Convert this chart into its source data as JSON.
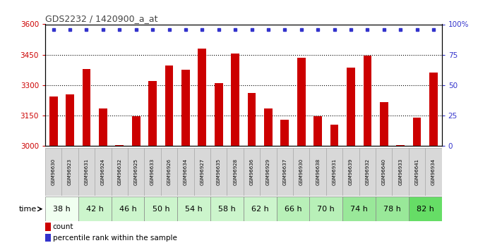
{
  "title": "GDS2232 / 1420900_a_at",
  "samples": [
    "GSM96630",
    "GSM96923",
    "GSM96631",
    "GSM96924",
    "GSM96632",
    "GSM96925",
    "GSM96633",
    "GSM96926",
    "GSM96634",
    "GSM96927",
    "GSM96635",
    "GSM96928",
    "GSM96636",
    "GSM96929",
    "GSM96637",
    "GSM96930",
    "GSM96638",
    "GSM96931",
    "GSM96639",
    "GSM96932",
    "GSM96640",
    "GSM96933",
    "GSM96641",
    "GSM96934"
  ],
  "bar_values": [
    3245,
    3255,
    3380,
    3185,
    3005,
    3145,
    3320,
    3395,
    3375,
    3480,
    3310,
    3455,
    3260,
    3185,
    3130,
    3435,
    3145,
    3105,
    3385,
    3445,
    3215,
    3005,
    3140,
    3360
  ],
  "time_groups": [
    {
      "label": "38 h",
      "start": 0,
      "end": 1,
      "color": "#f0fff0"
    },
    {
      "label": "42 h",
      "start": 2,
      "end": 3,
      "color": "#ccf5cc"
    },
    {
      "label": "46 h",
      "start": 4,
      "end": 5,
      "color": "#ccf5cc"
    },
    {
      "label": "50 h",
      "start": 6,
      "end": 7,
      "color": "#ccf5cc"
    },
    {
      "label": "54 h",
      "start": 8,
      "end": 9,
      "color": "#ccf5cc"
    },
    {
      "label": "58 h",
      "start": 10,
      "end": 11,
      "color": "#ccf5cc"
    },
    {
      "label": "62 h",
      "start": 12,
      "end": 13,
      "color": "#ccf5cc"
    },
    {
      "label": "66 h",
      "start": 14,
      "end": 15,
      "color": "#b8f0b8"
    },
    {
      "label": "70 h",
      "start": 16,
      "end": 17,
      "color": "#b8f0b8"
    },
    {
      "label": "74 h",
      "start": 18,
      "end": 19,
      "color": "#99e899"
    },
    {
      "label": "78 h",
      "start": 20,
      "end": 21,
      "color": "#99e899"
    },
    {
      "label": "82 h",
      "start": 22,
      "end": 23,
      "color": "#66dd66"
    }
  ],
  "time_group_colors": [
    "#f0fff0",
    "#ccf5cc",
    "#ccf5cc",
    "#ccf5cc",
    "#ccf5cc",
    "#ccf5cc",
    "#ccf5cc",
    "#b8f0b8",
    "#b8f0b8",
    "#99e899",
    "#99e899",
    "#66dd66"
  ],
  "bar_color": "#cc0000",
  "dot_color": "#3333cc",
  "ylim_left": [
    3000,
    3600
  ],
  "ylim_right": [
    0,
    100
  ],
  "yticks_left": [
    3000,
    3150,
    3300,
    3450,
    3600
  ],
  "yticks_right": [
    0,
    25,
    50,
    75,
    100
  ],
  "ytick_labels_right": [
    "0",
    "25",
    "50",
    "75",
    "100%"
  ],
  "grid_values": [
    3150,
    3300,
    3450
  ],
  "title_color": "#444444",
  "left_tick_color": "#cc0000",
  "right_tick_color": "#3333cc",
  "legend_count": "count",
  "legend_percentile": "percentile rank within the sample",
  "sample_label_bg": "#d8d8d8",
  "sample_label_border": "#aaaaaa"
}
